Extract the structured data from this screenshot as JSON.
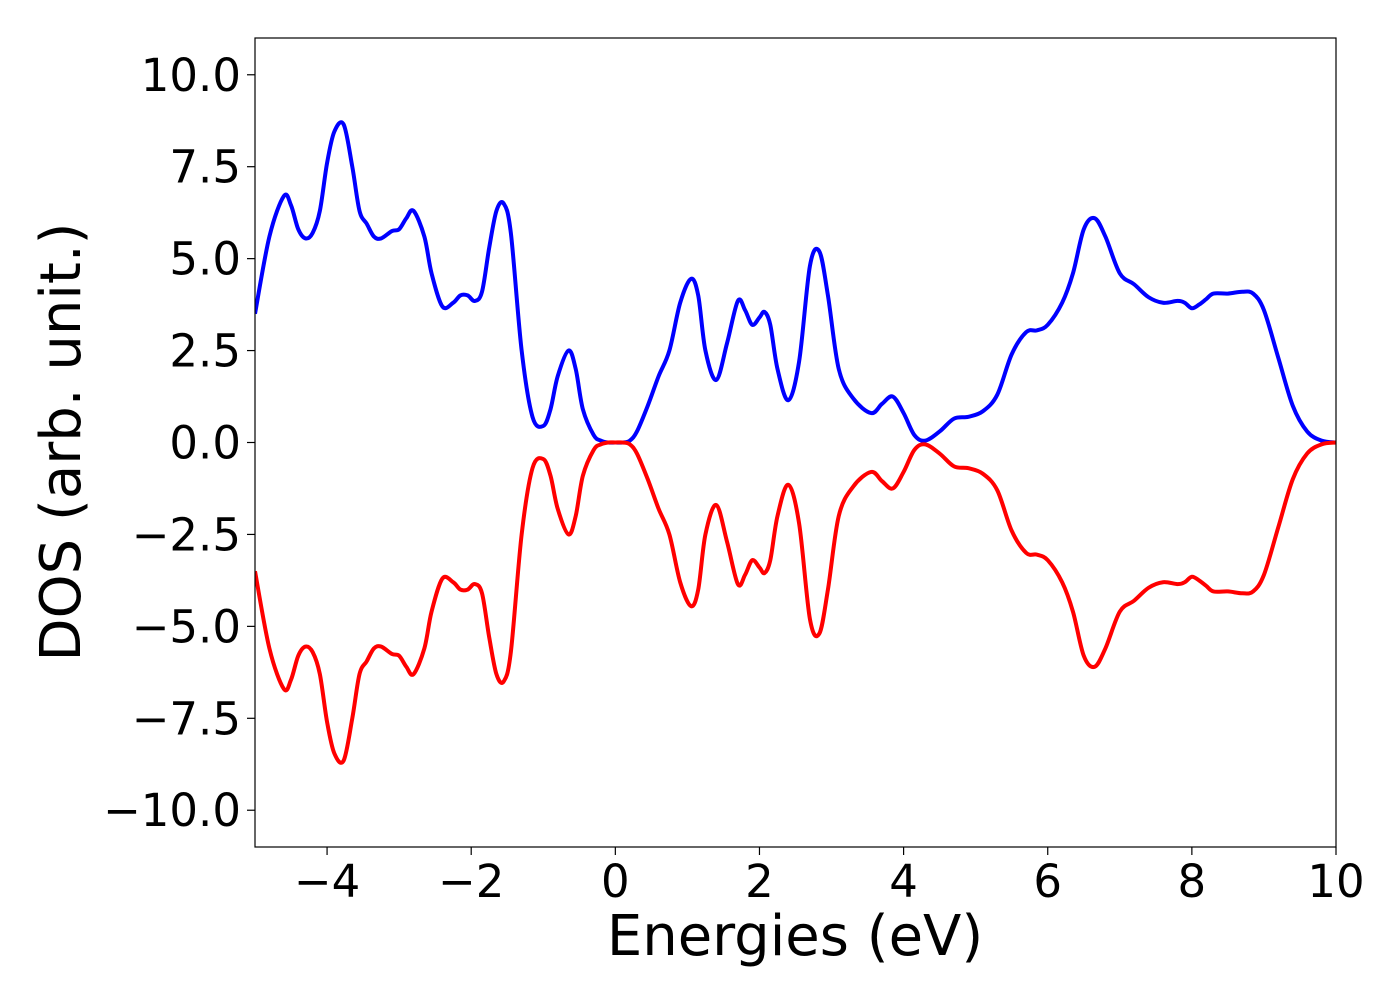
{
  "chart_data": {
    "type": "line",
    "title": "",
    "xlabel": "Energies (eV)",
    "ylabel": "DOS (arb. unit.)",
    "xlim": [
      -5,
      10
    ],
    "ylim": [
      -11,
      11
    ],
    "xticks": [
      -4,
      -2,
      0,
      2,
      4,
      6,
      8,
      10
    ],
    "xtick_labels": [
      "−4",
      "−2",
      "0",
      "2",
      "4",
      "6",
      "8",
      "10"
    ],
    "yticks": [
      10,
      7.5,
      5,
      2.5,
      0,
      -2.5,
      -5,
      -7.5,
      -10
    ],
    "ytick_labels": [
      "10.0",
      "7.5",
      "5.0",
      "2.5",
      "0.0",
      "−2.5",
      "−5.0",
      "−7.5",
      "−10.0"
    ],
    "grid": false,
    "legend": "none",
    "series": [
      {
        "color": "#0000ff",
        "x": [
          -5.0,
          -4.8,
          -4.6,
          -4.5,
          -4.4,
          -4.3,
          -4.2,
          -4.1,
          -4.0,
          -3.9,
          -3.77,
          -3.65,
          -3.55,
          -3.45,
          -3.35,
          -3.25,
          -3.1,
          -3.0,
          -2.9,
          -2.8,
          -2.65,
          -2.55,
          -2.4,
          -2.25,
          -2.15,
          -2.05,
          -1.95,
          -1.85,
          -1.75,
          -1.65,
          -1.55,
          -1.45,
          -1.3,
          -1.15,
          -1.0,
          -0.9,
          -0.8,
          -0.65,
          -0.55,
          -0.45,
          -0.3,
          -0.2,
          -0.1,
          0.0,
          0.1,
          0.2,
          0.3,
          0.45,
          0.6,
          0.75,
          0.9,
          1.05,
          1.15,
          1.25,
          1.4,
          1.55,
          1.7,
          1.8,
          1.9,
          2.0,
          2.07,
          2.15,
          2.25,
          2.4,
          2.55,
          2.7,
          2.83,
          2.95,
          3.1,
          3.3,
          3.55,
          3.7,
          3.85,
          4.0,
          4.15,
          4.3,
          4.5,
          4.7,
          4.9,
          5.1,
          5.3,
          5.5,
          5.7,
          5.85,
          6.0,
          6.2,
          6.35,
          6.5,
          6.65,
          6.8,
          7.0,
          7.2,
          7.4,
          7.6,
          7.8,
          7.9,
          8.0,
          8.1,
          8.2,
          8.3,
          8.5,
          8.7,
          8.85,
          9.0,
          9.2,
          9.4,
          9.6,
          9.8,
          10.0
        ],
        "y": [
          3.5,
          5.6,
          6.7,
          6.45,
          5.8,
          5.55,
          5.7,
          6.3,
          7.6,
          8.45,
          8.65,
          7.5,
          6.3,
          5.95,
          5.6,
          5.55,
          5.75,
          5.8,
          6.1,
          6.3,
          5.6,
          4.6,
          3.7,
          3.8,
          4.0,
          4.0,
          3.85,
          4.1,
          5.3,
          6.3,
          6.5,
          5.7,
          2.5,
          0.7,
          0.45,
          0.9,
          1.8,
          2.5,
          2.0,
          0.9,
          0.2,
          0.05,
          0.0,
          0.0,
          0.0,
          0.05,
          0.3,
          1.0,
          1.8,
          2.5,
          3.8,
          4.45,
          4.0,
          2.5,
          1.7,
          2.7,
          3.85,
          3.6,
          3.2,
          3.4,
          3.55,
          3.2,
          2.0,
          1.15,
          2.2,
          4.8,
          5.2,
          4.0,
          2.0,
          1.2,
          0.8,
          1.05,
          1.25,
          0.8,
          0.2,
          0.05,
          0.3,
          0.65,
          0.7,
          0.85,
          1.3,
          2.4,
          3.0,
          3.05,
          3.2,
          3.8,
          4.6,
          5.8,
          6.1,
          5.6,
          4.6,
          4.3,
          3.95,
          3.8,
          3.85,
          3.8,
          3.65,
          3.75,
          3.9,
          4.05,
          4.05,
          4.1,
          4.05,
          3.6,
          2.3,
          1.0,
          0.3,
          0.05,
          0.0
        ]
      },
      {
        "color": "#ff0000",
        "x": [
          -5.0,
          -4.8,
          -4.6,
          -4.5,
          -4.4,
          -4.3,
          -4.2,
          -4.1,
          -4.0,
          -3.9,
          -3.77,
          -3.65,
          -3.55,
          -3.45,
          -3.35,
          -3.25,
          -3.1,
          -3.0,
          -2.9,
          -2.8,
          -2.65,
          -2.55,
          -2.4,
          -2.25,
          -2.15,
          -2.05,
          -1.95,
          -1.85,
          -1.75,
          -1.65,
          -1.55,
          -1.45,
          -1.3,
          -1.15,
          -1.0,
          -0.9,
          -0.8,
          -0.65,
          -0.55,
          -0.45,
          -0.3,
          -0.2,
          -0.1,
          0.0,
          0.1,
          0.2,
          0.3,
          0.45,
          0.6,
          0.75,
          0.9,
          1.05,
          1.15,
          1.25,
          1.4,
          1.55,
          1.7,
          1.8,
          1.9,
          2.0,
          2.07,
          2.15,
          2.25,
          2.4,
          2.55,
          2.7,
          2.83,
          2.95,
          3.1,
          3.3,
          3.55,
          3.7,
          3.85,
          4.0,
          4.15,
          4.3,
          4.5,
          4.7,
          4.9,
          5.1,
          5.3,
          5.5,
          5.7,
          5.85,
          6.0,
          6.2,
          6.35,
          6.5,
          6.65,
          6.8,
          7.0,
          7.2,
          7.4,
          7.6,
          7.8,
          7.9,
          8.0,
          8.1,
          8.2,
          8.3,
          8.5,
          8.7,
          8.85,
          9.0,
          9.2,
          9.4,
          9.6,
          9.8,
          10.0
        ],
        "y": [
          -3.5,
          -5.6,
          -6.7,
          -6.45,
          -5.8,
          -5.55,
          -5.7,
          -6.3,
          -7.6,
          -8.45,
          -8.65,
          -7.5,
          -6.3,
          -5.95,
          -5.6,
          -5.55,
          -5.75,
          -5.8,
          -6.1,
          -6.3,
          -5.6,
          -4.6,
          -3.7,
          -3.8,
          -4.0,
          -4.0,
          -3.85,
          -4.1,
          -5.3,
          -6.3,
          -6.5,
          -5.7,
          -2.5,
          -0.7,
          -0.45,
          -0.9,
          -1.8,
          -2.5,
          -2.0,
          -0.9,
          -0.2,
          -0.05,
          0.0,
          0.0,
          0.0,
          -0.05,
          -0.3,
          -1.0,
          -1.8,
          -2.5,
          -3.8,
          -4.45,
          -4.0,
          -2.5,
          -1.7,
          -2.7,
          -3.85,
          -3.6,
          -3.2,
          -3.4,
          -3.55,
          -3.2,
          -2.0,
          -1.15,
          -2.2,
          -4.8,
          -5.2,
          -4.0,
          -2.0,
          -1.2,
          -0.8,
          -1.05,
          -1.25,
          -0.8,
          -0.2,
          -0.05,
          -0.3,
          -0.65,
          -0.7,
          -0.85,
          -1.3,
          -2.4,
          -3.0,
          -3.05,
          -3.2,
          -3.8,
          -4.6,
          -5.8,
          -6.1,
          -5.6,
          -4.6,
          -4.3,
          -3.95,
          -3.8,
          -3.85,
          -3.8,
          -3.65,
          -3.75,
          -3.9,
          -4.05,
          -4.05,
          -4.1,
          -4.05,
          -3.6,
          -2.3,
          -1.0,
          -0.3,
          -0.05,
          0.0
        ]
      }
    ]
  }
}
